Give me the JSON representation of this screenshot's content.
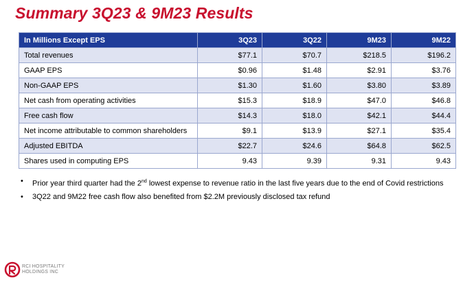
{
  "title": "Summary 3Q23 & 9M23 Results",
  "table": {
    "headers": [
      "In Millions Except EPS",
      "3Q23",
      "3Q22",
      "9M23",
      "9M22"
    ],
    "rows": [
      [
        "Total revenues",
        "$77.1",
        "$70.7",
        "$218.5",
        "$196.2"
      ],
      [
        "GAAP EPS",
        "$0.96",
        "$1.48",
        "$2.91",
        "$3.76"
      ],
      [
        "Non-GAAP EPS",
        "$1.30",
        "$1.60",
        "$3.80",
        "$3.89"
      ],
      [
        "Net cash from operating activities",
        "$15.3",
        "$18.9",
        "$47.0",
        "$46.8"
      ],
      [
        "Free cash flow",
        "$14.3",
        "$18.0",
        "$42.1",
        "$44.4"
      ],
      [
        "Net income attributable to common shareholders",
        "$9.1",
        "$13.9",
        "$27.1",
        "$35.4"
      ],
      [
        "Adjusted EBITDA",
        "$22.7",
        "$24.6",
        "$64.8",
        "$62.5"
      ],
      [
        "Shares used in computing EPS",
        "9.43",
        "9.39",
        "9.31",
        "9.43"
      ]
    ]
  },
  "notes": {
    "bullet": "•",
    "note1_before": "Prior year third quarter had the 2",
    "note1_sup": "nd",
    "note1_after": " lowest expense to revenue ratio in the last five years due to the end of Covid restrictions",
    "note2": "3Q22 and 9M22 free cash flow also benefited from $2.2M previously disclosed tax refund"
  },
  "logo": {
    "line1": "RCI HOSPITALITY",
    "line2": "HOLDINGS INC"
  },
  "colors": {
    "title": "#c8102e",
    "header_bg": "#1f3c99",
    "row_alt_bg": "#dfe3f2"
  }
}
